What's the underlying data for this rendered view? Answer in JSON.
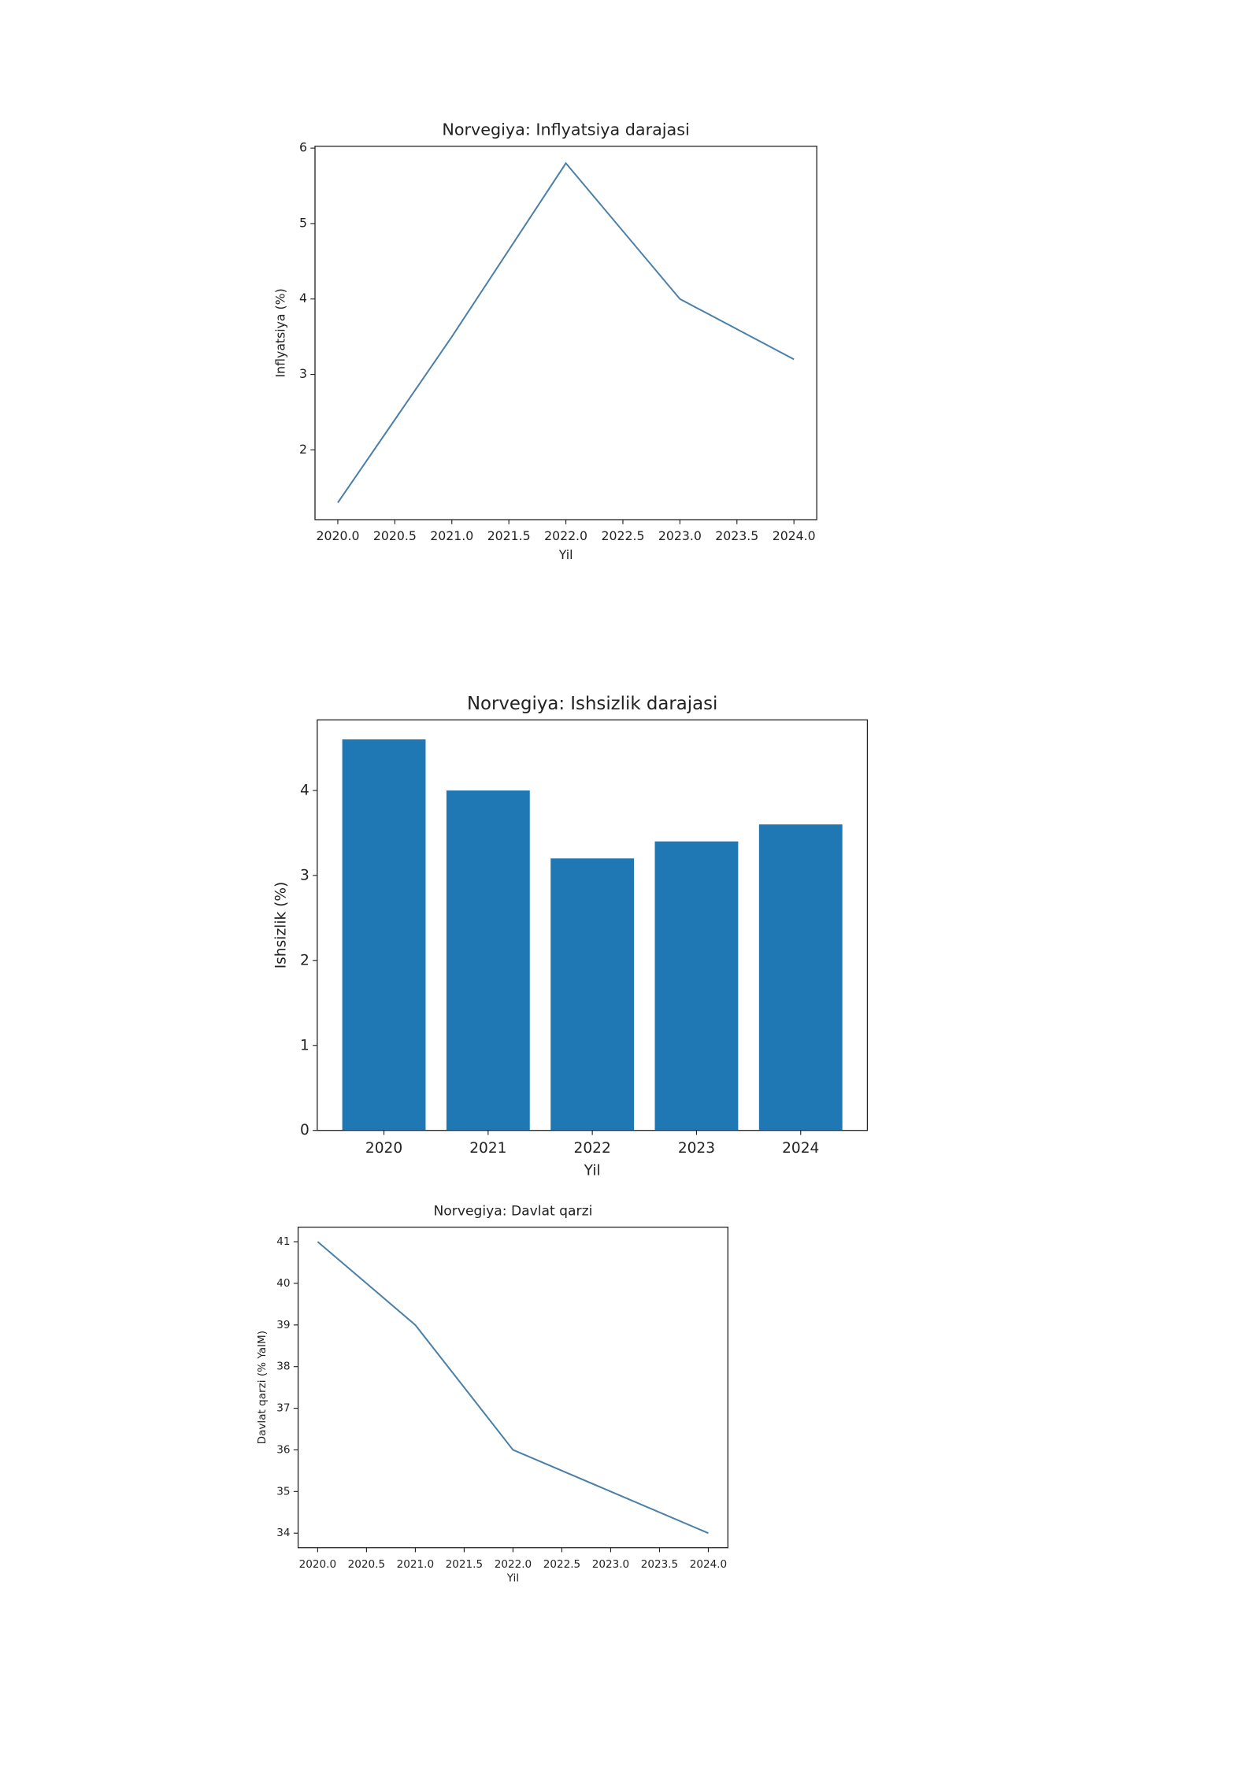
{
  "chart_data": [
    {
      "type": "line",
      "title": "Norvegiya: Inflyatsiya darajasi",
      "x_label": "Yil",
      "y_label": "Inflyatsiya (%)",
      "x": [
        2020,
        2021,
        2022,
        2023,
        2024
      ],
      "series": [
        {
          "color": "#4a7fa8",
          "values": [
            1.3,
            3.5,
            5.8,
            4.0,
            3.2
          ]
        }
      ],
      "xlim": [
        2019.8,
        2024.2
      ],
      "xticks": [
        {
          "value": 2020,
          "label": "2020.0"
        },
        {
          "value": 2020.5,
          "label": "2020.5"
        },
        {
          "value": 2021,
          "label": "2021.0"
        },
        {
          "value": 2021.5,
          "label": "2021.5"
        },
        {
          "value": 2022,
          "label": "2022.0"
        },
        {
          "value": 2022.5,
          "label": "2022.5"
        },
        {
          "value": 2023,
          "label": "2023.0"
        },
        {
          "value": 2023.5,
          "label": "2023.5"
        },
        {
          "value": 2024,
          "label": "2024.0"
        }
      ],
      "ylim": [
        1.075,
        6.025
      ],
      "yticks": [
        2,
        3,
        4,
        5,
        6
      ]
    },
    {
      "type": "bar",
      "title": "Norvegiya: Ishsizlik darajasi",
      "x_label": "Yil",
      "y_label": "Ishsizlik (%)",
      "categories": [
        "2020",
        "2021",
        "2022",
        "2023",
        "2024"
      ],
      "series": [
        {
          "color": "#1f77b4",
          "values": [
            4.6,
            4.0,
            3.2,
            3.4,
            3.6
          ]
        }
      ],
      "ylim": [
        0,
        4.83
      ],
      "yticks": [
        0,
        1,
        2,
        3,
        4
      ]
    },
    {
      "type": "line",
      "title": "Norvegiya: Davlat qarzi",
      "x_label": "Yil",
      "y_label": "Davlat qarzi (% YaIM)",
      "x": [
        2020,
        2021,
        2022,
        2023,
        2024
      ],
      "series": [
        {
          "color": "#4a7fa8",
          "values": [
            41,
            39,
            36,
            35,
            34
          ]
        }
      ],
      "xlim": [
        2019.8,
        2024.2
      ],
      "xticks": [
        {
          "value": 2020,
          "label": "2020.0"
        },
        {
          "value": 2020.5,
          "label": "2020.5"
        },
        {
          "value": 2021,
          "label": "2021.0"
        },
        {
          "value": 2021.5,
          "label": "2021.5"
        },
        {
          "value": 2022,
          "label": "2022.0"
        },
        {
          "value": 2022.5,
          "label": "2022.5"
        },
        {
          "value": 2023,
          "label": "2023.0"
        },
        {
          "value": 2023.5,
          "label": "2023.5"
        },
        {
          "value": 2024,
          "label": "2024.0"
        }
      ],
      "ylim": [
        33.65,
        41.35
      ],
      "yticks": [
        34,
        35,
        36,
        37,
        38,
        39,
        40,
        41
      ]
    }
  ]
}
